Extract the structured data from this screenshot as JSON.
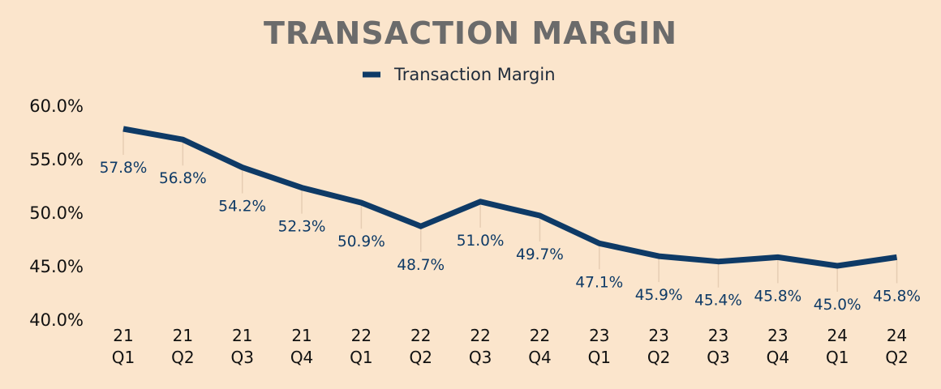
{
  "chart_data": {
    "type": "line",
    "title": "TRANSACTION MARGIN",
    "xlabel": "",
    "ylabel": "",
    "categories": [
      [
        "21",
        "Q1"
      ],
      [
        "21",
        "Q2"
      ],
      [
        "21",
        "Q3"
      ],
      [
        "21",
        "Q4"
      ],
      [
        "22",
        "Q1"
      ],
      [
        "22",
        "Q2"
      ],
      [
        "22",
        "Q3"
      ],
      [
        "22",
        "Q4"
      ],
      [
        "23",
        "Q1"
      ],
      [
        "23",
        "Q2"
      ],
      [
        "23",
        "Q3"
      ],
      [
        "23",
        "Q4"
      ],
      [
        "24",
        "Q1"
      ],
      [
        "24",
        "Q2"
      ]
    ],
    "series": [
      {
        "name": "Transaction Margin",
        "values": [
          57.8,
          56.8,
          54.2,
          52.3,
          50.9,
          48.7,
          51.0,
          49.7,
          47.1,
          45.9,
          45.4,
          45.8,
          45.0,
          45.8
        ],
        "labels": [
          "57.8%",
          "56.8%",
          "54.2%",
          "52.3%",
          "50.9%",
          "48.7%",
          "51.0%",
          "49.7%",
          "47.1%",
          "45.9%",
          "45.4%",
          "45.8%",
          "45.0%",
          "45.8%"
        ]
      }
    ],
    "ylim": [
      40,
      60
    ],
    "yticks": [
      40,
      45,
      50,
      55,
      60
    ],
    "ytick_labels": [
      "40.0%",
      "45.0%",
      "50.0%",
      "55.0%",
      "60.0%"
    ],
    "grid": false,
    "legend_position": "top-center",
    "colors": {
      "background": "#FBE5CC",
      "line": "#0E3A66",
      "title": "#6B6B6B",
      "data_label": "#0E3A66",
      "drop_line": "#E6CDB3"
    }
  }
}
